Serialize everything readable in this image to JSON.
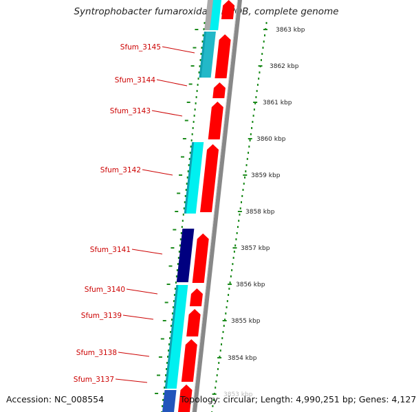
{
  "title": "Syntrophobacter fumaroxidans MPOB, complete genome",
  "footer": {
    "accession": "Accession: NC_008554",
    "topology": "Topology: circular; Length: 4,990,251 bp; Genes: 4,127"
  },
  "colors": {
    "forward_cds": "#ff0000",
    "reverse_cds_light": "#00f0f0",
    "reverse_cds_dark": "#000080",
    "reverse_cds_teal": "#22b8c8",
    "label_red": "#cc0000",
    "tick_green": "#1a8a1a",
    "backbone_gray": "#888888",
    "scale_text": "#222222"
  },
  "genes": [
    {
      "name": "Sfum_3145"
    },
    {
      "name": "Sfum_3144"
    },
    {
      "name": "Sfum_3143"
    },
    {
      "name": "Sfum_3142"
    },
    {
      "name": "Sfum_3141"
    },
    {
      "name": "Sfum_3140"
    },
    {
      "name": "Sfum_3139"
    },
    {
      "name": "Sfum_3138"
    },
    {
      "name": "Sfum_3137"
    }
  ],
  "scale_labels": [
    "3863 kbp",
    "3862 kbp",
    "3861 kbp",
    "3860 kbp",
    "3859 kbp",
    "3858 kbp",
    "3857 kbp",
    "3856 kbp",
    "3855 kbp",
    "3854 kbp",
    "3853 kbp"
  ]
}
